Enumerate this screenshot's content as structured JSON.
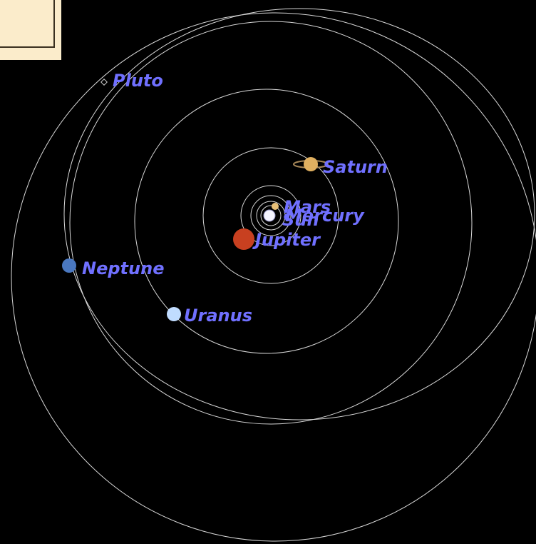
{
  "planets": [
    {
      "label": "Pluto"
    },
    {
      "label": "Saturn"
    },
    {
      "label": "Mars"
    },
    {
      "label": "Mercury"
    },
    {
      "label": "Sun"
    },
    {
      "label": "Jupiter"
    },
    {
      "label": "Neptune"
    },
    {
      "label": "Uranus"
    }
  ]
}
